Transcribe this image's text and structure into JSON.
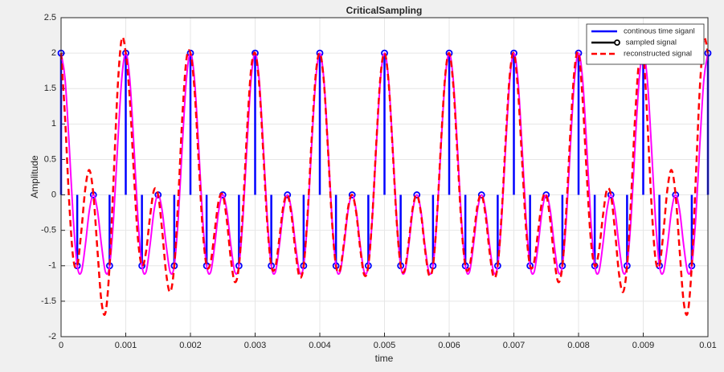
{
  "chart_data": {
    "type": "line",
    "title": "CriticalSampling",
    "x_label": "time",
    "y_label": "Amplitude",
    "xlim": [
      0,
      0.01
    ],
    "ylim": [
      -2,
      2.5
    ],
    "xticks": [
      0,
      0.001,
      0.002,
      0.003,
      0.004,
      0.005,
      0.006,
      0.007,
      0.008,
      0.009,
      0.01
    ],
    "yticks": [
      -2,
      -1.5,
      -1,
      -0.5,
      0,
      0.5,
      1,
      1.5,
      2,
      2.5
    ],
    "grid": true,
    "legend_position": "northeast",
    "x": [
      0,
      6.25e-05,
      0.000125,
      0.0001875,
      0.00025,
      0.0003125,
      0.000375,
      0.0004375,
      0.0005,
      0.0005625,
      0.000625,
      0.0006875,
      0.00075,
      0.0008125,
      0.000875,
      0.0009375,
      0.001,
      0.0010625,
      0.001125,
      0.0011875,
      0.00125,
      0.0013125,
      0.001375,
      0.0014375,
      0.0015,
      0.0015625,
      0.001625,
      0.0016875,
      0.00175,
      0.0018125,
      0.001875,
      0.0019375,
      0.002,
      0.0020625,
      0.002125,
      0.0021875,
      0.00225,
      0.0023125,
      0.002375,
      0.0024375,
      0.0025,
      0.0025625,
      0.002625,
      0.0026875,
      0.00275,
      0.0028125,
      0.002875,
      0.0029375,
      0.003,
      0.0030625,
      0.003125,
      0.0031875,
      0.00325,
      0.0033125,
      0.003375,
      0.0034375,
      0.0035,
      0.0035625,
      0.003625,
      0.0036875,
      0.00375,
      0.0038125,
      0.003875,
      0.0039375,
      0.004,
      0.0040625,
      0.004125,
      0.0041875,
      0.00425,
      0.0043125,
      0.004375,
      0.0044375,
      0.0045,
      0.0045625,
      0.004625,
      0.0046875,
      0.00475,
      0.0048125,
      0.004875,
      0.0049375,
      0.005,
      0.0050625,
      0.005125,
      0.0051875,
      0.00525,
      0.0053125,
      0.005375,
      0.0054375,
      0.0055,
      0.0055625,
      0.005625,
      0.0056875,
      0.00575,
      0.0058125,
      0.005875,
      0.0059375,
      0.006,
      0.0060625,
      0.006125,
      0.0061875,
      0.00625,
      0.0063125,
      0.006375,
      0.0064375,
      0.0065,
      0.0065625,
      0.006625,
      0.0066875,
      0.00675,
      0.0068125,
      0.006875,
      0.0069375,
      0.007,
      0.0070625,
      0.007125,
      0.0071875,
      0.00725,
      0.0073125,
      0.007375,
      0.0074375,
      0.0075,
      0.0075625,
      0.007625,
      0.0076875,
      0.00775,
      0.0078125,
      0.007875,
      0.0079375,
      0.008,
      0.0080625,
      0.008125,
      0.0081875,
      0.00825,
      0.0083125,
      0.008375,
      0.0084375,
      0.0085,
      0.0085625,
      0.008625,
      0.0086875,
      0.00875,
      0.0088125,
      0.008875,
      0.0089375,
      0.009,
      0.0090625,
      0.009125,
      0.0091875,
      0.00925,
      0.0093125,
      0.009375,
      0.0094375,
      0.0095,
      0.0095625,
      0.009625,
      0.0096875,
      0.00975,
      0.0098125,
      0.009875,
      0.0099375,
      0.01
    ],
    "series": [
      {
        "name": "continous time siganl",
        "style": "line",
        "color": "#ff00ff",
        "legend_color": "#0000ff",
        "values": [
          2,
          1.63,
          0.71,
          -0.32,
          -1,
          -1.09,
          -0.71,
          -0.22,
          0,
          -0.22,
          -0.71,
          -1.09,
          -1,
          -0.32,
          0.71,
          1.63,
          2,
          1.63,
          0.71,
          -0.32,
          -1,
          -1.09,
          -0.71,
          -0.22,
          0,
          -0.22,
          -0.71,
          -1.09,
          -1,
          -0.32,
          0.71,
          1.63,
          2,
          1.63,
          0.71,
          -0.32,
          -1,
          -1.09,
          -0.71,
          -0.22,
          0,
          -0.22,
          -0.71,
          -1.09,
          -1,
          -0.32,
          0.71,
          1.63,
          2,
          1.63,
          0.71,
          -0.32,
          -1,
          -1.09,
          -0.71,
          -0.22,
          0,
          -0.22,
          -0.71,
          -1.09,
          -1,
          -0.32,
          0.71,
          1.63,
          2,
          1.63,
          0.71,
          -0.32,
          -1,
          -1.09,
          -0.71,
          -0.22,
          0,
          -0.22,
          -0.71,
          -1.09,
          -1,
          -0.32,
          0.71,
          1.63,
          2,
          1.63,
          0.71,
          -0.32,
          -1,
          -1.09,
          -0.71,
          -0.22,
          0,
          -0.22,
          -0.71,
          -1.09,
          -1,
          -0.32,
          0.71,
          1.63,
          2,
          1.63,
          0.71,
          -0.32,
          -1,
          -1.09,
          -0.71,
          -0.22,
          0,
          -0.22,
          -0.71,
          -1.09,
          -1,
          -0.32,
          0.71,
          1.63,
          2,
          1.63,
          0.71,
          -0.32,
          -1,
          -1.09,
          -0.71,
          -0.22,
          0,
          -0.22,
          -0.71,
          -1.09,
          -1,
          -0.32,
          0.71,
          1.63,
          2,
          1.63,
          0.71,
          -0.32,
          -1,
          -1.09,
          -0.71,
          -0.22,
          0,
          -0.22,
          -0.71,
          -1.09,
          -1,
          -0.32,
          0.71,
          1.63,
          2,
          1.63,
          0.71,
          -0.32,
          -1,
          -1.09,
          -0.71,
          -0.22,
          0,
          -0.22,
          -0.71,
          -1.09,
          -1,
          -0.32,
          0.71,
          1.63,
          2
        ]
      },
      {
        "name": " sampled signal",
        "style": "stem",
        "color": "#0000ff",
        "legend_color": "#000000",
        "x": [
          0,
          0.00025,
          0.0005,
          0.00075,
          0.001,
          0.00125,
          0.0015,
          0.00175,
          0.002,
          0.00225,
          0.0025,
          0.00275,
          0.003,
          0.00325,
          0.0035,
          0.00375,
          0.004,
          0.00425,
          0.0045,
          0.00475,
          0.005,
          0.00525,
          0.0055,
          0.00575,
          0.006,
          0.00625,
          0.0065,
          0.00675,
          0.007,
          0.00725,
          0.0075,
          0.00775,
          0.008,
          0.00825,
          0.0085,
          0.00875,
          0.009,
          0.00925,
          0.0095,
          0.00975,
          0.01
        ],
        "values": [
          2,
          -1,
          0,
          -1,
          2,
          -1,
          0,
          -1,
          2,
          -1,
          0,
          -1,
          2,
          -1,
          0,
          -1,
          2,
          -1,
          0,
          -1,
          2,
          -1,
          0,
          -1,
          2,
          -1,
          0,
          -1,
          2,
          -1,
          0,
          -1,
          2,
          -1,
          0,
          -1,
          2,
          -1,
          0,
          -1,
          2
        ]
      },
      {
        "name": "reconstructed signal",
        "style": "dashed",
        "color": "#ff0000",
        "legend_color": "#ff0000",
        "values": [
          2,
          1.07,
          -0.09,
          -0.89,
          -1,
          -0.52,
          0.09,
          0.35,
          0,
          -0.78,
          -1.51,
          -1.66,
          -1,
          0.24,
          1.51,
          2.2,
          2,
          1.35,
          0.31,
          -0.61,
          -1,
          -0.81,
          -0.31,
          0.07,
          0,
          -0.5,
          -1.11,
          -1.37,
          -1,
          -0.04,
          1.11,
          1.91,
          2,
          1.49,
          0.51,
          -0.47,
          -1,
          -0.95,
          -0.51,
          -0.08,
          0,
          -0.36,
          -0.91,
          -1.23,
          -1,
          -0.18,
          0.91,
          1.77,
          2,
          1.56,
          0.61,
          -0.4,
          -1,
          -1.02,
          -0.61,
          -0.15,
          0,
          -0.29,
          -0.81,
          -1.16,
          -1,
          -0.25,
          0.81,
          1.7,
          2,
          1.6,
          0.66,
          -0.36,
          -1,
          -1.06,
          -0.66,
          -0.18,
          0,
          -0.25,
          -0.76,
          -1.13,
          -1,
          -0.29,
          0.76,
          1.67,
          2,
          1.6,
          0.66,
          -0.36,
          -1,
          -1.06,
          -0.66,
          -0.18,
          0,
          -0.25,
          -0.76,
          -1.13,
          -1,
          -0.29,
          0.76,
          1.67,
          2,
          1.56,
          0.61,
          -0.4,
          -1,
          -1.02,
          -0.61,
          -0.15,
          0,
          -0.29,
          -0.81,
          -1.16,
          -1,
          -0.25,
          0.81,
          1.7,
          2,
          1.49,
          0.51,
          -0.47,
          -1,
          -0.95,
          -0.51,
          -0.08,
          0,
          -0.36,
          -0.91,
          -1.23,
          -1,
          -0.18,
          0.91,
          1.77,
          2,
          1.35,
          0.31,
          -0.61,
          -1,
          -0.81,
          -0.31,
          0.07,
          0,
          -0.5,
          -1.11,
          -1.37,
          -1,
          -0.04,
          1.11,
          1.91,
          2,
          1.07,
          -0.09,
          -0.89,
          -1,
          -0.52,
          0.09,
          0.35,
          0,
          -0.78,
          -1.51,
          -1.66,
          -1,
          0.24,
          1.51,
          2.2,
          2
        ]
      }
    ]
  }
}
